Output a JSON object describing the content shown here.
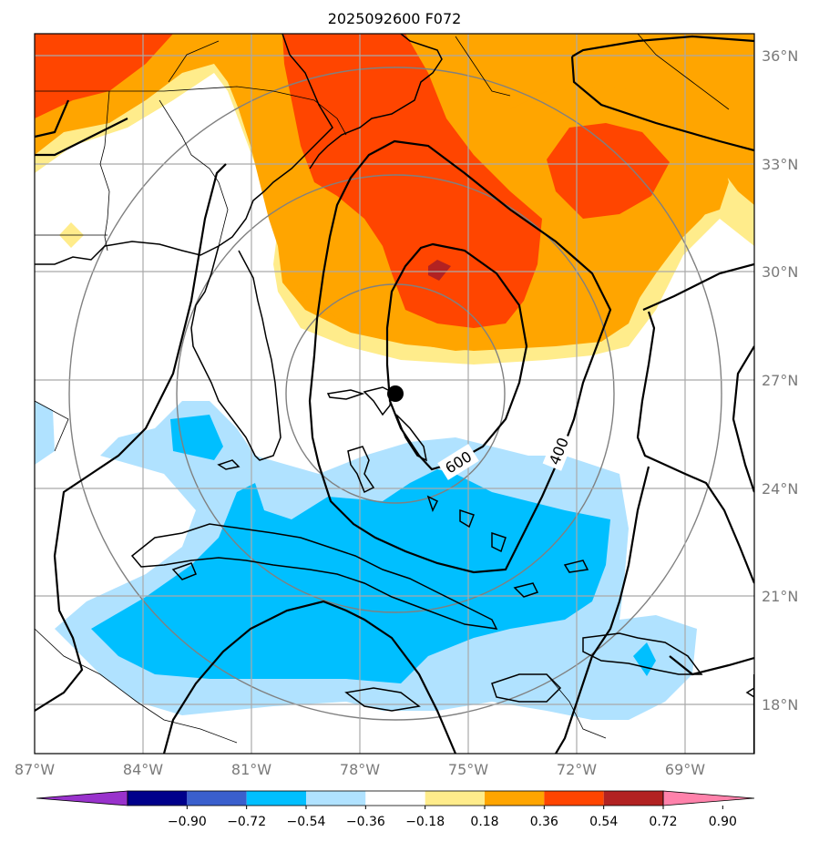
{
  "title": "2025092600 F072",
  "lat_labels": [
    "36°N",
    "33°N",
    "30°N",
    "27°N",
    "24°N",
    "21°N",
    "18°N"
  ],
  "lon_labels": [
    "87°W",
    "84°W",
    "81°W",
    "78°W",
    "75°W",
    "72°W",
    "69°W"
  ],
  "contour_labels": [
    "600",
    "400"
  ],
  "colorbar": {
    "ticks": [
      "−0.90",
      "−0.72",
      "−0.54",
      "−0.36",
      "−0.18",
      "0.18",
      "0.36",
      "0.54",
      "0.72",
      "0.90"
    ],
    "colors": [
      "#9932CC",
      "#00008B",
      "#3A5FCD",
      "#00BFFF",
      "#B0E2FF",
      "#FFFFFF",
      "#FFEC8B",
      "#FFA500",
      "#FF4500",
      "#B22222",
      "#FF82AB"
    ]
  },
  "center_marker": "storm-center",
  "colors": {
    "grid": "#a9a9a9",
    "range_rings": "#808080",
    "contours": "#000000",
    "tick_text": "#7a7a7a"
  }
}
